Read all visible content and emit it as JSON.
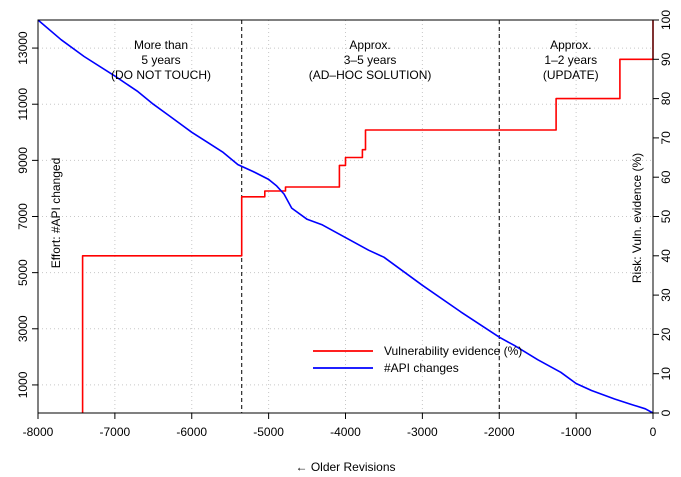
{
  "chart_data": {
    "type": "line",
    "xlabel": "← Older Revisions",
    "ylabel_left": "Effort: #API changed",
    "ylabel_right": "Risk: Vuln. evidence (%)",
    "xlim": [
      -8000,
      0
    ],
    "ylim_left": [
      0,
      14000
    ],
    "ylim_right": [
      0,
      100
    ],
    "xticks": [
      "-8000",
      "-7000",
      "-6000",
      "-5000",
      "-4000",
      "-3000",
      "-2000",
      "-1000",
      "0"
    ],
    "yticks_left": [
      "1000",
      "3000",
      "5000",
      "7000",
      "9000",
      "11000",
      "13000"
    ],
    "yticks_right": [
      "0",
      "10",
      "20",
      "30",
      "40",
      "50",
      "60",
      "70",
      "80",
      "90",
      "100"
    ],
    "grid": true,
    "legend_position": "bottom-center",
    "annotations": [
      {
        "lines": [
          "More than",
          "5 years",
          "(DO NOT TOUCH)"
        ],
        "x": -6400
      },
      {
        "lines": [
          "Approx.",
          "3–5 years",
          "(AD–HOC SOLUTION)"
        ],
        "x": -3680
      },
      {
        "lines": [
          "Approx.",
          "1–2 years",
          "(UPDATE)"
        ],
        "x": -1070
      }
    ],
    "vlines": [
      -5350,
      -2000
    ],
    "series": [
      {
        "name": "Vulnerability evidence (%)",
        "color": "#ff0000",
        "axis": "right",
        "step": true,
        "x": [
          -7420,
          -7420,
          -5350,
          -5050,
          -4780,
          -4080,
          -4000,
          -3780,
          -3740,
          -1260,
          -430,
          0
        ],
        "y": [
          0,
          40,
          55,
          56.5,
          57.5,
          63,
          65,
          67,
          72,
          80,
          90,
          100
        ]
      },
      {
        "name": "#API changes",
        "color": "#0000ff",
        "axis": "left",
        "step": false,
        "x": [
          -8000,
          -7700,
          -7400,
          -7000,
          -6700,
          -6500,
          -6300,
          -6000,
          -5800,
          -5600,
          -5400,
          -5200,
          -5000,
          -4900,
          -4800,
          -4700,
          -4500,
          -4300,
          -4000,
          -3700,
          -3500,
          -3000,
          -2500,
          -2000,
          -1800,
          -1500,
          -1200,
          -1000,
          -800,
          -500,
          -300,
          -100,
          0
        ],
        "y": [
          14000,
          13300,
          12700,
          12000,
          11450,
          11000,
          10600,
          10000,
          9650,
          9300,
          8850,
          8600,
          8320,
          8100,
          7800,
          7300,
          6900,
          6700,
          6250,
          5800,
          5550,
          4550,
          3600,
          2700,
          2400,
          1900,
          1450,
          1050,
          800,
          500,
          320,
          150,
          0
        ]
      }
    ]
  }
}
